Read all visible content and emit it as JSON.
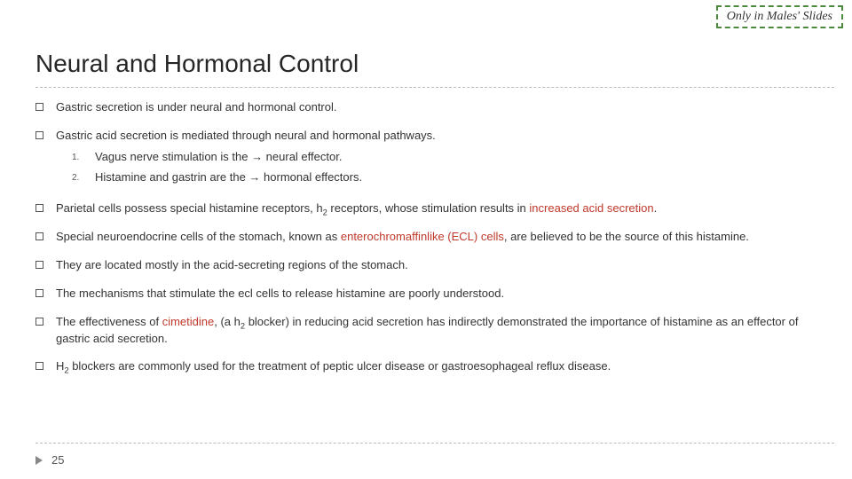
{
  "badge": "Only in Males' Slides",
  "title": "Neural and Hormonal Control",
  "bullets": {
    "b1": "Gastric secretion is under neural and hormonal control.",
    "b2": "Gastric acid secretion is mediated through neural and hormonal pathways.",
    "b2s1num": "1.",
    "b2s1": "Vagus nerve stimulation is the → neural effector.",
    "b2s2num": "2.",
    "b2s2": "Histamine and gastrin are the → hormonal effectors.",
    "b3a": "Parietal cells possess special histamine receptors, h",
    "b3sub": "2",
    "b3b": " receptors, whose stimulation results in ",
    "b3red": "increased acid secretion",
    "b3c": ".",
    "b4a": "Special neuroendocrine cells of the stomach, known as ",
    "b4red": "enterochromaffinlike (ECL) cells",
    "b4b": ", are believed to be the source of this histamine.",
    "b5": "They are located mostly in the acid-secreting regions of the stomach.",
    "b6": "The mechanisms that stimulate the ecl cells to release histamine are poorly understood.",
    "b7a": "The effectiveness of ",
    "b7red": "cimetidine",
    "b7b": ", (a h",
    "b7sub": "2",
    "b7c": " blocker) in reducing acid secretion has indirectly demonstrated the importance of histamine as an effector of gastric acid secretion.",
    "b8a": "H",
    "b8sub": "2",
    "b8b": " blockers are commonly used for the treatment of peptic ulcer disease or gastroesophageal reflux disease."
  },
  "pageNum": "25",
  "colors": {
    "badge_border": "#4a8a3a",
    "red_text": "#c0392b",
    "dash_line": "#bbbbbb",
    "text": "#333333"
  }
}
